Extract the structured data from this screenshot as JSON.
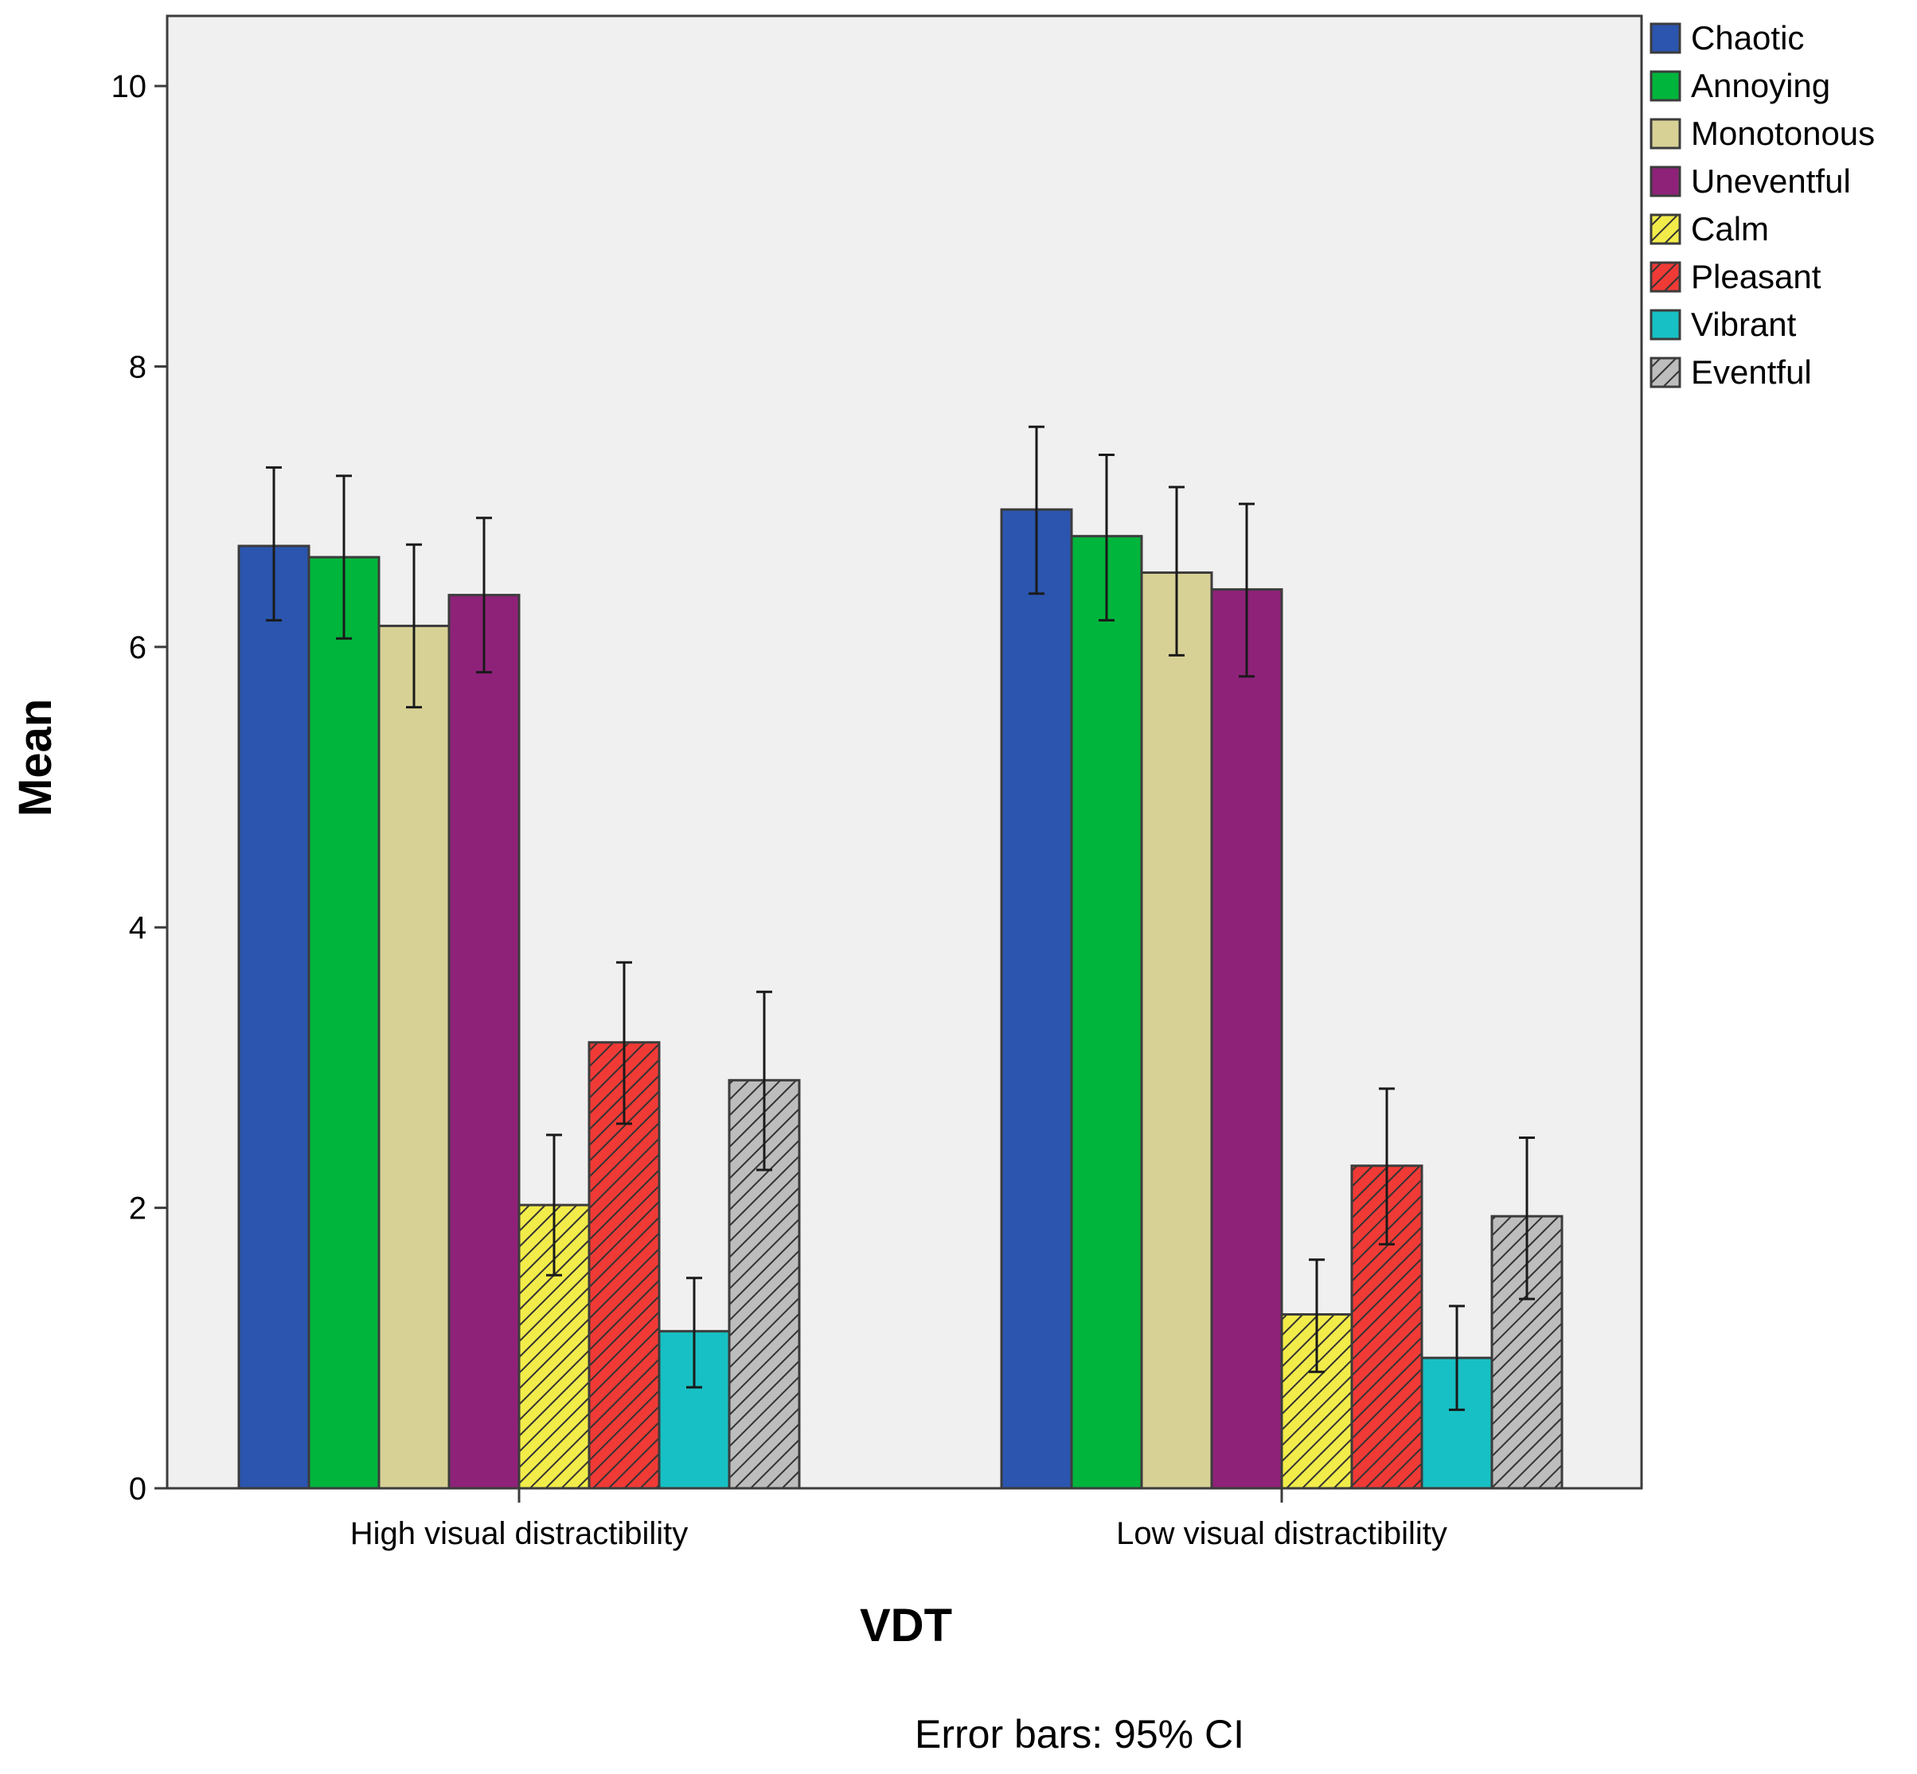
{
  "chart_data": {
    "type": "bar",
    "xlabel": "VDT",
    "ylabel": "Mean",
    "footnote": "Error bars: 95% CI",
    "ylim": [
      0,
      10.5
    ],
    "yticks": [
      0,
      2,
      4,
      6,
      8,
      10
    ],
    "grid": false,
    "legend_position": "top-right",
    "categories": [
      "High visual distractibility",
      "Low visual distractibility"
    ],
    "series": [
      {
        "name": "Chaotic",
        "color": "#2B55AE",
        "pattern": "solid",
        "values": [
          6.72,
          6.98
        ],
        "ci_low": [
          6.19,
          6.38
        ],
        "ci_high": [
          7.28,
          7.57
        ]
      },
      {
        "name": "Annoying",
        "color": "#00B53C",
        "pattern": "solid",
        "values": [
          6.64,
          6.79
        ],
        "ci_low": [
          6.06,
          6.19
        ],
        "ci_high": [
          7.22,
          7.37
        ]
      },
      {
        "name": "Monotonous",
        "color": "#D8D196",
        "pattern": "solid",
        "values": [
          6.15,
          6.53
        ],
        "ci_low": [
          5.57,
          5.94
        ],
        "ci_high": [
          6.73,
          7.14
        ]
      },
      {
        "name": "Uneventful",
        "color": "#8E2279",
        "pattern": "solid",
        "values": [
          6.37,
          6.41
        ],
        "ci_low": [
          5.82,
          5.79
        ],
        "ci_high": [
          6.92,
          7.02
        ]
      },
      {
        "name": "Calm",
        "color": "#F2EC4A",
        "pattern": "hatch",
        "values": [
          2.02,
          1.24
        ],
        "ci_low": [
          1.52,
          0.83
        ],
        "ci_high": [
          2.52,
          1.63
        ]
      },
      {
        "name": "Pleasant",
        "color": "#F03A36",
        "pattern": "hatch",
        "values": [
          3.18,
          2.3
        ],
        "ci_low": [
          2.6,
          1.74
        ],
        "ci_high": [
          3.75,
          2.85
        ]
      },
      {
        "name": "Vibrant",
        "color": "#17C0C4",
        "pattern": "solid",
        "values": [
          1.12,
          0.93
        ],
        "ci_low": [
          0.72,
          0.56
        ],
        "ci_high": [
          1.5,
          1.3
        ]
      },
      {
        "name": "Eventful",
        "color": "#BDBDBD",
        "pattern": "hatch",
        "values": [
          2.91,
          1.94
        ],
        "ci_low": [
          2.27,
          1.35
        ],
        "ci_high": [
          3.54,
          2.5
        ]
      }
    ]
  },
  "colors": {
    "plot_background": "#F0F0F0",
    "axis": "#3C3C3C",
    "hatch_stroke": "#333333"
  }
}
